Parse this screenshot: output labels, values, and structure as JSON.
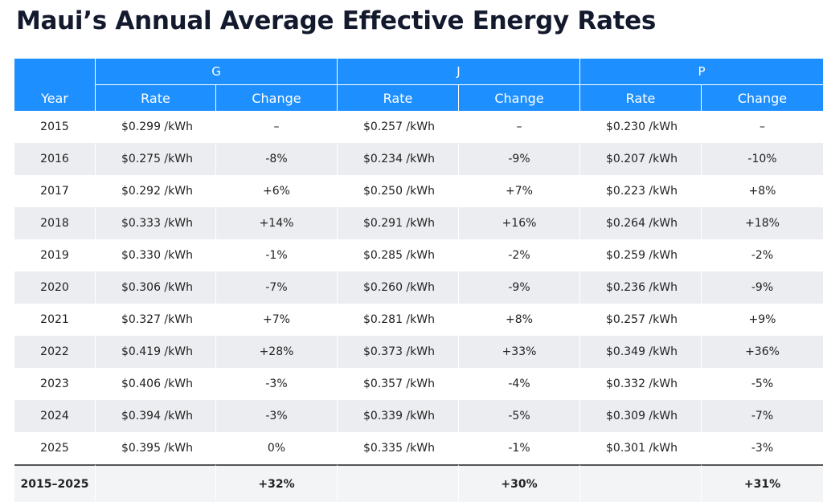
{
  "title": "Maui’s Annual Average Effective Energy Rates",
  "table": {
    "year_header": "Year",
    "groups": [
      "G",
      "J",
      "P"
    ],
    "columns": [
      "Rate",
      "Change",
      "Rate",
      "Change",
      "Rate",
      "Change"
    ],
    "rows": [
      [
        "2015",
        "$0.299 /kWh",
        "–",
        "$0.257 /kWh",
        "–",
        "$0.230 /kWh",
        "–"
      ],
      [
        "2016",
        "$0.275 /kWh",
        "-8%",
        "$0.234 /kWh",
        "-9%",
        "$0.207 /kWh",
        "-10%"
      ],
      [
        "2017",
        "$0.292 /kWh",
        "+6%",
        "$0.250 /kWh",
        "+7%",
        "$0.223 /kWh",
        "+8%"
      ],
      [
        "2018",
        "$0.333 /kWh",
        "+14%",
        "$0.291 /kWh",
        "+16%",
        "$0.264 /kWh",
        "+18%"
      ],
      [
        "2019",
        "$0.330 /kWh",
        "-1%",
        "$0.285 /kWh",
        "-2%",
        "$0.259 /kWh",
        "-2%"
      ],
      [
        "2020",
        "$0.306 /kWh",
        "-7%",
        "$0.260 /kWh",
        "-9%",
        "$0.236 /kWh",
        "-9%"
      ],
      [
        "2021",
        "$0.327 /kWh",
        "+7%",
        "$0.281 /kWh",
        "+8%",
        "$0.257 /kWh",
        "+9%"
      ],
      [
        "2022",
        "$0.419 /kWh",
        "+28%",
        "$0.373 /kWh",
        "+33%",
        "$0.349 /kWh",
        "+36%"
      ],
      [
        "2023",
        "$0.406 /kWh",
        "-3%",
        "$0.357 /kWh",
        "-4%",
        "$0.332 /kWh",
        "-5%"
      ],
      [
        "2024",
        "$0.394 /kWh",
        "-3%",
        "$0.339 /kWh",
        "-5%",
        "$0.309 /kWh",
        "-7%"
      ],
      [
        "2025",
        "$0.395 /kWh",
        "0%",
        "$0.335 /kWh",
        "-1%",
        "$0.301 /kWh",
        "-3%"
      ]
    ],
    "footer": [
      "2015–2025",
      "+32%",
      "+30%",
      "+31%"
    ]
  }
}
